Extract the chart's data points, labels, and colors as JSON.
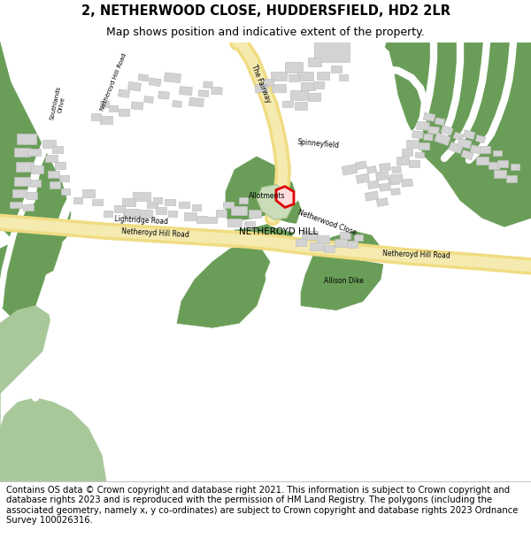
{
  "title_line1": "2, NETHERWOOD CLOSE, HUDDERSFIELD, HD2 2LR",
  "title_line2": "Map shows position and indicative extent of the property.",
  "footer_text": "Contains OS data © Crown copyright and database right 2021. This information is subject to Crown copyright and database rights 2023 and is reproduced with the permission of HM Land Registry. The polygons (including the associated geometry, namely x, y co-ordinates) are subject to Crown copyright and database rights 2023 Ordnance Survey 100026316.",
  "title_fontsize": 10.5,
  "subtitle_fontsize": 9,
  "footer_fontsize": 7.2,
  "fig_width": 6.0,
  "fig_height": 6.25,
  "dpi": 100,
  "map_bg": "#ffffff",
  "green_dark": "#6a9e58",
  "green_light": "#b5d4a0",
  "green_water": "#a8c89a",
  "road_yellow": "#f0dc82",
  "road_yellow_light": "#f5ebb0",
  "road_white": "#ffffff",
  "building_fill": "#d3d3d3",
  "building_edge": "#c0c0c0",
  "allotment_green": "#c8ddb8",
  "highlight_red": "#dd0000",
  "highlight_fill": "#ffdddd",
  "text_color": "#000000",
  "header_bg": "#ffffff",
  "footer_bg": "#ffffff"
}
